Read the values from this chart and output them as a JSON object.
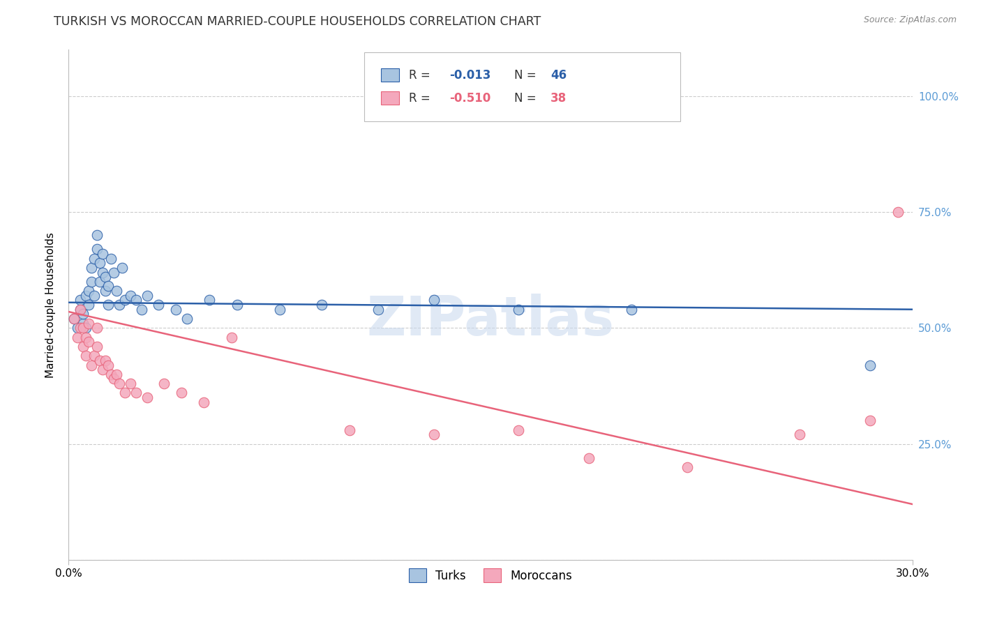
{
  "title": "TURKISH VS MOROCCAN MARRIED-COUPLE HOUSEHOLDS CORRELATION CHART",
  "source": "Source: ZipAtlas.com",
  "ylabel": "Married-couple Households",
  "xlim": [
    0.0,
    0.3
  ],
  "ylim": [
    0.0,
    1.1
  ],
  "yticks": [
    0.0,
    0.25,
    0.5,
    0.75,
    1.0
  ],
  "ytick_labels": [
    "",
    "25.0%",
    "50.0%",
    "75.0%",
    "100.0%"
  ],
  "turks_R": "-0.013",
  "turks_N": "46",
  "moroccans_R": "-0.510",
  "moroccans_N": "38",
  "turks_color": "#a8c4e0",
  "moroccans_color": "#f4a8bc",
  "trendline_turks_color": "#2b5fa8",
  "trendline_moroccans_color": "#e8637a",
  "turks_x": [
    0.002,
    0.003,
    0.004,
    0.004,
    0.005,
    0.005,
    0.006,
    0.006,
    0.007,
    0.007,
    0.008,
    0.008,
    0.009,
    0.009,
    0.01,
    0.01,
    0.011,
    0.011,
    0.012,
    0.012,
    0.013,
    0.013,
    0.014,
    0.014,
    0.015,
    0.016,
    0.017,
    0.018,
    0.019,
    0.02,
    0.022,
    0.024,
    0.026,
    0.028,
    0.032,
    0.038,
    0.042,
    0.05,
    0.06,
    0.075,
    0.09,
    0.11,
    0.13,
    0.16,
    0.2,
    0.285
  ],
  "turks_y": [
    0.52,
    0.5,
    0.54,
    0.56,
    0.51,
    0.53,
    0.5,
    0.57,
    0.58,
    0.55,
    0.6,
    0.63,
    0.57,
    0.65,
    0.7,
    0.67,
    0.64,
    0.6,
    0.62,
    0.66,
    0.58,
    0.61,
    0.55,
    0.59,
    0.65,
    0.62,
    0.58,
    0.55,
    0.63,
    0.56,
    0.57,
    0.56,
    0.54,
    0.57,
    0.55,
    0.54,
    0.52,
    0.56,
    0.55,
    0.54,
    0.55,
    0.54,
    0.56,
    0.54,
    0.54,
    0.42
  ],
  "moroccans_x": [
    0.002,
    0.003,
    0.004,
    0.004,
    0.005,
    0.005,
    0.006,
    0.006,
    0.007,
    0.007,
    0.008,
    0.009,
    0.01,
    0.01,
    0.011,
    0.012,
    0.013,
    0.014,
    0.015,
    0.016,
    0.017,
    0.018,
    0.02,
    0.022,
    0.024,
    0.028,
    0.034,
    0.04,
    0.048,
    0.058,
    0.1,
    0.13,
    0.16,
    0.185,
    0.22,
    0.26,
    0.285,
    0.295
  ],
  "moroccans_y": [
    0.52,
    0.48,
    0.5,
    0.54,
    0.46,
    0.5,
    0.48,
    0.44,
    0.47,
    0.51,
    0.42,
    0.44,
    0.46,
    0.5,
    0.43,
    0.41,
    0.43,
    0.42,
    0.4,
    0.39,
    0.4,
    0.38,
    0.36,
    0.38,
    0.36,
    0.35,
    0.38,
    0.36,
    0.34,
    0.48,
    0.28,
    0.27,
    0.28,
    0.22,
    0.2,
    0.27,
    0.3,
    0.75
  ],
  "turks_trendline": [
    0.555,
    0.54
  ],
  "moroccans_trendline": [
    0.535,
    0.12
  ],
  "watermark": "ZIPatlas",
  "background_color": "#ffffff",
  "grid_color": "#cccccc",
  "axis_color": "#bbbbbb",
  "right_label_color": "#5b9bd5",
  "title_fontsize": 12.5,
  "label_fontsize": 11,
  "tick_fontsize": 11,
  "source_fontsize": 9,
  "legend_fontsize": 12
}
